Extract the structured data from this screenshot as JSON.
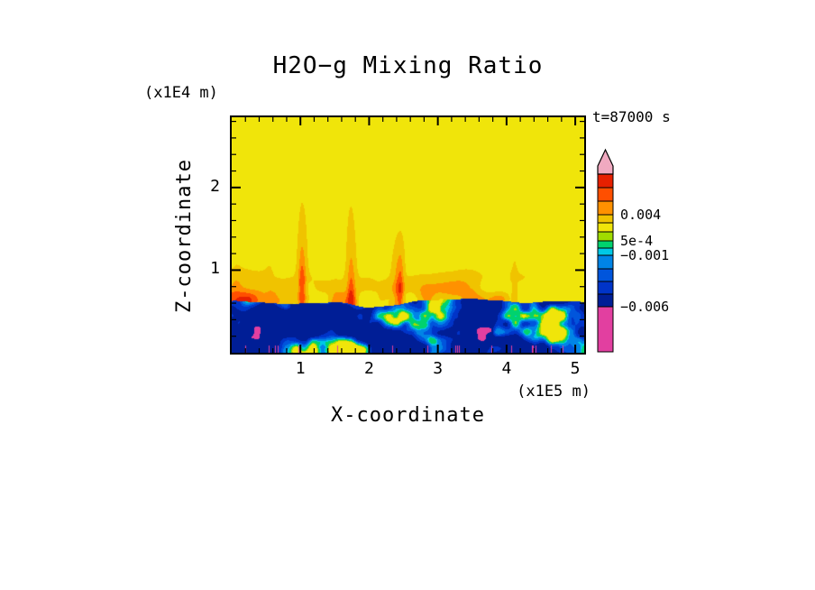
{
  "chart_data": {
    "type": "heatmap",
    "title": "H2O−g Mixing Ratio",
    "xlabel": "X-coordinate",
    "ylabel": "Z-coordinate",
    "x_unit": "(x1E5 m)",
    "y_unit": "(x1E4 m)",
    "time_label": "t=87000 s",
    "xlim": [
      0,
      5.13
    ],
    "ylim": [
      0,
      2.85
    ],
    "x_major_ticks": [
      1,
      2,
      3,
      4,
      5
    ],
    "y_major_ticks": [
      1,
      2
    ],
    "minor_tick_interval": 0.2,
    "grid": false,
    "background_color": "#ffffff",
    "frame_color": "#000000",
    "color_scale": {
      "levels": [
        -0.006,
        -0.0045,
        -0.003,
        -0.002,
        -0.001,
        -0.0005,
        0.0005,
        0.001,
        0.002,
        0.004,
        0.006,
        0.008
      ],
      "colors": [
        "#e23fa0",
        "#001e96",
        "#0034c8",
        "#0055dc",
        "#0084e6",
        "#00c8e6",
        "#00d26e",
        "#a0dc00",
        "#f0e50a",
        "#f0c300",
        "#ff9100",
        "#ff4f00",
        "#e62000"
      ]
    },
    "colorbar": {
      "orientation": "vertical",
      "position": "right",
      "over_arrow_color": "#f0a9c0",
      "segments": [
        {
          "color": "#e23fa0",
          "h": 50,
          "label": "−0.006"
        },
        {
          "color": "#001e96",
          "h": 14
        },
        {
          "color": "#0034c8",
          "h": 14
        },
        {
          "color": "#0055dc",
          "h": 14
        },
        {
          "color": "#0084e6",
          "h": 15,
          "label": "−0.001"
        },
        {
          "color": "#00c8e6",
          "h": 8
        },
        {
          "color": "#00d26e",
          "h": 8,
          "label": "5e-4"
        },
        {
          "color": "#a0dc00",
          "h": 10
        },
        {
          "color": "#f0e50a",
          "h": 10
        },
        {
          "color": "#f0c300",
          "h": 9,
          "label": "0.004"
        },
        {
          "color": "#ff9100",
          "h": 15
        },
        {
          "color": "#ff4f00",
          "h": 15
        },
        {
          "color": "#e62000",
          "h": 15
        }
      ]
    },
    "field": {
      "noise_seed": 7,
      "interface_height_1e4m": 0.61,
      "regions": [
        {
          "region": "upper_ambient",
          "z_range_1e4m": [
            1.2,
            2.85
          ],
          "value": 0.0015,
          "appearance": "uniform yellow"
        },
        {
          "region": "interface_plumes",
          "z_range_1e4m": [
            0.55,
            1.2
          ],
          "value_range": [
            0.002,
            0.009
          ],
          "appearance": "orange-red buoyant plumes rising from interface"
        },
        {
          "region": "lower_turbulent",
          "z_range_1e4m": [
            0.0,
            0.62
          ],
          "value_range": [
            -0.0075,
            0.001
          ],
          "appearance": "dark navy with blue, cyan and green turbulent eddies"
        }
      ]
    }
  }
}
